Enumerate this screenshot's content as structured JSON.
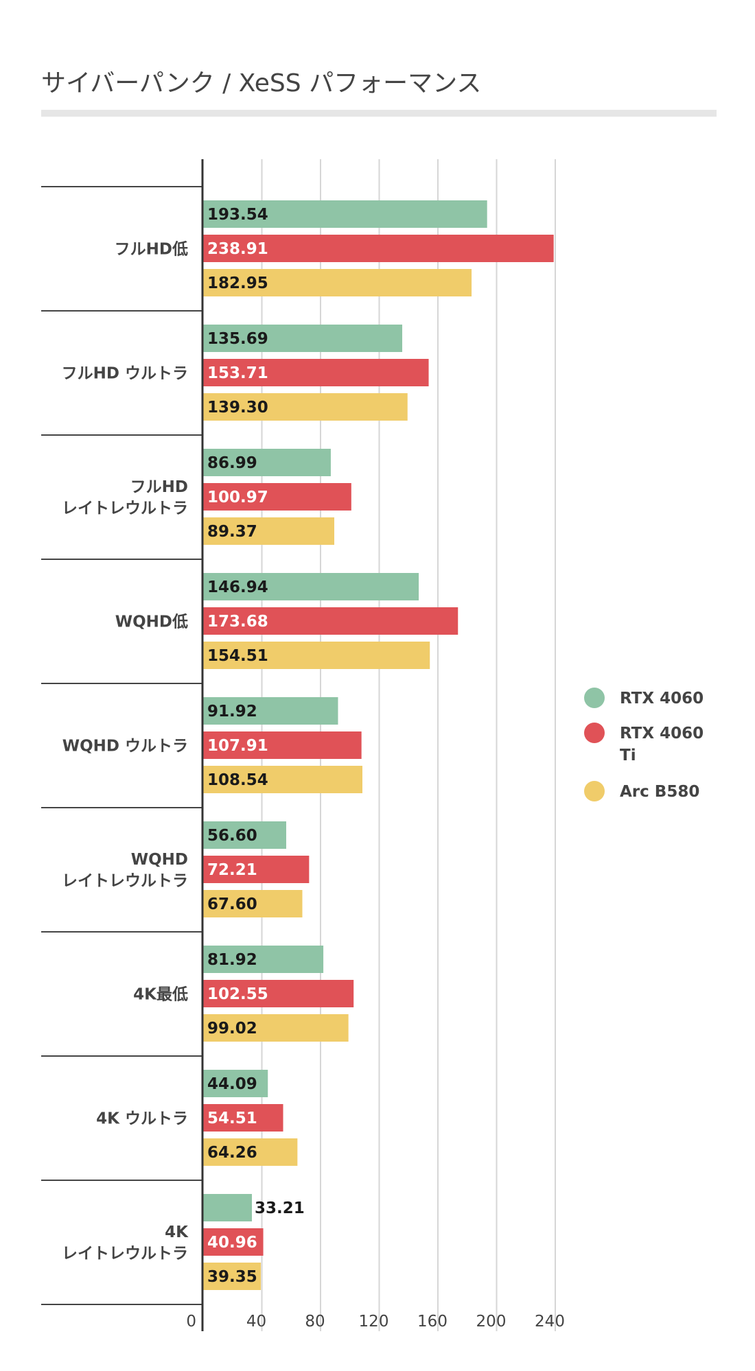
{
  "chart_data": {
    "type": "bar",
    "orientation": "horizontal",
    "title": "サイバーパンク / XeSS パフォーマンス",
    "categories": [
      [
        "フルHD低"
      ],
      [
        "フルHD ウルトラ"
      ],
      [
        "フルHD",
        "レイトレウルトラ"
      ],
      [
        "WQHD低"
      ],
      [
        "WQHD ウルトラ"
      ],
      [
        "WQHD",
        "レイトレウルトラ"
      ],
      [
        "4K最低"
      ],
      [
        "4K ウルトラ"
      ],
      [
        "4K",
        "レイトレウルトラ"
      ]
    ],
    "series": [
      {
        "name": [
          "RTX 4060"
        ],
        "color": "#8fc4a6",
        "label_color": "#1a1a1a",
        "values": [
          193.54,
          135.69,
          86.99,
          146.94,
          91.92,
          56.6,
          81.92,
          44.09,
          33.21
        ],
        "labels": [
          "193.54",
          "135.69",
          "86.99",
          "146.94",
          "91.92",
          "56.60",
          "81.92",
          "44.09",
          "33.21"
        ]
      },
      {
        "name": [
          "RTX 4060",
          "Ti"
        ],
        "color": "#e05257",
        "label_color": "#ffffff",
        "values": [
          238.91,
          153.71,
          100.97,
          173.68,
          107.91,
          72.21,
          102.55,
          54.51,
          40.96
        ],
        "labels": [
          "238.91",
          "153.71",
          "100.97",
          "173.68",
          "107.91",
          "72.21",
          "102.55",
          "54.51",
          "40.96"
        ]
      },
      {
        "name": [
          "Arc B580"
        ],
        "color": "#f0cc6a",
        "label_color": "#1a1a1a",
        "values": [
          182.95,
          139.3,
          89.37,
          154.51,
          108.54,
          67.6,
          99.02,
          64.26,
          39.35
        ],
        "labels": [
          "182.95",
          "139.30",
          "89.37",
          "154.51",
          "108.54",
          "67.60",
          "99.02",
          "64.26",
          "39.35"
        ]
      }
    ],
    "xticks": [
      "0",
      "40",
      "80",
      "120",
      "160",
      "200",
      "240"
    ],
    "xlim": [
      0,
      240
    ],
    "grid": true,
    "legend_position": "right"
  }
}
